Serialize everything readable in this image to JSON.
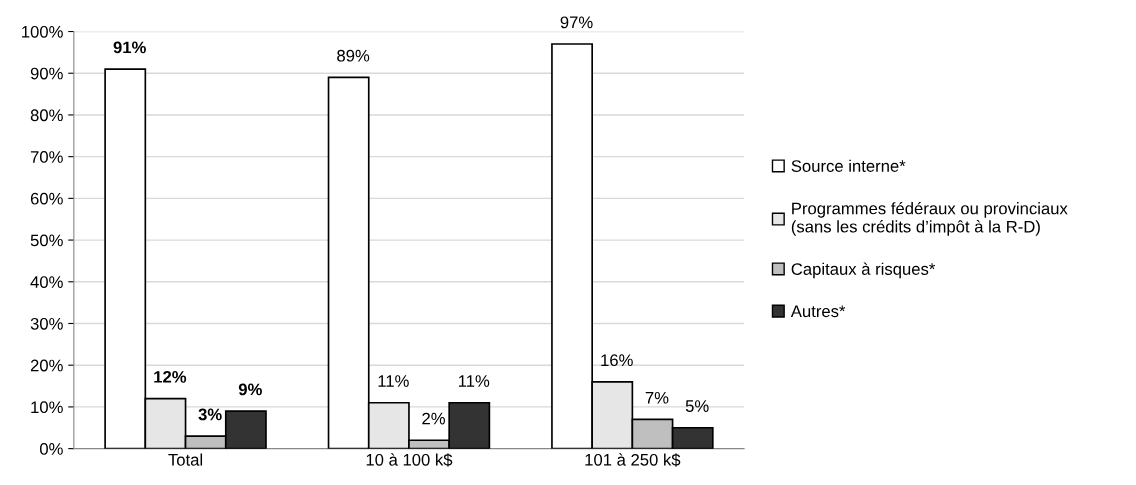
{
  "chart_data": {
    "type": "bar",
    "categories": [
      "Total",
      "10 à 100 k$",
      "101 à 250 k$"
    ],
    "series": [
      {
        "name": "Source interne*",
        "color": "#ffffff",
        "values": [
          91,
          89,
          97
        ],
        "value_labels": [
          "91%",
          "89%",
          "97%"
        ]
      },
      {
        "name": "Programmes fédéraux ou provinciaux\n(sans les crédits d’impôt à la R-D)",
        "color": "#e6e6e6",
        "values": [
          12,
          11,
          16
        ],
        "value_labels": [
          "12%",
          "11%",
          "16%"
        ]
      },
      {
        "name": "Capitaux à risques*",
        "color": "#bfbfbf",
        "values": [
          3,
          2,
          7
        ],
        "value_labels": [
          "3%",
          "2%",
          "7%"
        ]
      },
      {
        "name": "Autres*",
        "color": "#333333",
        "values": [
          9,
          11,
          5
        ],
        "value_labels": [
          "9%",
          "11%",
          "5%"
        ]
      }
    ],
    "ylim": [
      0,
      100
    ],
    "yticks": [
      {
        "value": 0,
        "label": "0%"
      },
      {
        "value": 10,
        "label": "10%"
      },
      {
        "value": 20,
        "label": "20%"
      },
      {
        "value": 30,
        "label": "30%"
      },
      {
        "value": 40,
        "label": "40%"
      },
      {
        "value": 50,
        "label": "50%"
      },
      {
        "value": 60,
        "label": "60%"
      },
      {
        "value": 70,
        "label": "70%"
      },
      {
        "value": 80,
        "label": "80%"
      },
      {
        "value": 90,
        "label": "90%"
      },
      {
        "value": 100,
        "label": "100%"
      }
    ],
    "grid": "y",
    "legend": "right"
  }
}
